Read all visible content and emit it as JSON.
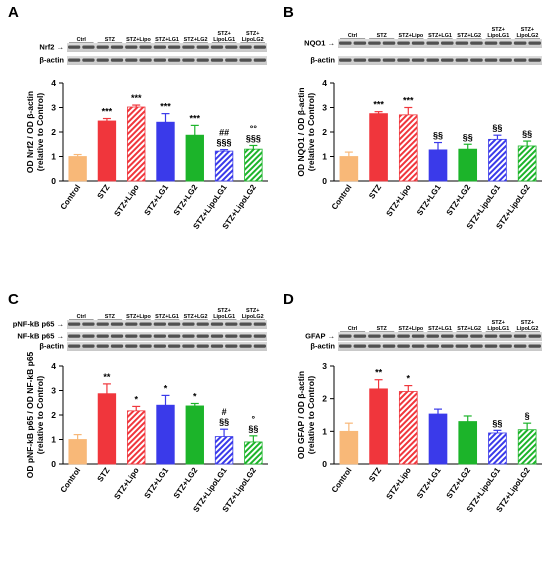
{
  "panels": [
    {
      "panel_letter": "A",
      "lane_labels": [
        [
          "Ctrl"
        ],
        [
          "STZ"
        ],
        [
          "STZ+Lipo"
        ],
        [
          "STZ+LG1"
        ],
        [
          "STZ+LG2"
        ],
        [
          "STZ+",
          "LipoLG1"
        ],
        [
          "STZ+",
          "LipoLG2"
        ]
      ],
      "blot_labels": [
        "Nrf2",
        "β-actin"
      ],
      "chart_data": {
        "type": "bar",
        "categories": [
          "Control",
          "STZ",
          "STZ+Lipo",
          "STZ+LG1",
          "STZ+LG2",
          "STZ+LipoLG1",
          "STZ+LipoLG2"
        ],
        "values": [
          1.0,
          2.45,
          3.02,
          2.4,
          1.87,
          1.22,
          1.3
        ],
        "errors": [
          0.08,
          0.1,
          0.08,
          0.35,
          0.4,
          0.06,
          0.15
        ],
        "significance": [
          [],
          [
            "***"
          ],
          [
            "***"
          ],
          [
            "***"
          ],
          [
            "***"
          ],
          [
            "##",
            "§§§"
          ],
          [
            "°°",
            "§§§"
          ]
        ],
        "ylabel_lines": [
          "OD Nrf2 / OD β-actin",
          "(relative to Control)"
        ],
        "ylim": [
          0,
          4
        ],
        "yticks": [
          0,
          1,
          2,
          3,
          4
        ]
      }
    },
    {
      "panel_letter": "B",
      "lane_labels": [
        [
          "Ctrl"
        ],
        [
          "STZ"
        ],
        [
          "STZ+Lipo"
        ],
        [
          "STZ+LG1"
        ],
        [
          "STZ+LG2"
        ],
        [
          "STZ+",
          "LipoLG1"
        ],
        [
          "STZ+",
          "LipoLG2"
        ]
      ],
      "blot_labels": [
        "NQO1",
        "β-actin"
      ],
      "chart_data": {
        "type": "bar",
        "categories": [
          "Control",
          "STZ",
          "STZ+Lipo",
          "STZ+LG1",
          "STZ+LG2",
          "STZ+LipoLG1",
          "STZ+LipoLG2"
        ],
        "values": [
          1.0,
          2.75,
          2.7,
          1.27,
          1.3,
          1.7,
          1.43
        ],
        "errors": [
          0.18,
          0.08,
          0.3,
          0.3,
          0.2,
          0.17,
          0.2
        ],
        "significance": [
          [],
          [
            "***"
          ],
          [
            "***"
          ],
          [
            "§§"
          ],
          [
            "§§"
          ],
          [
            "§§"
          ],
          [
            "§§"
          ]
        ],
        "ylabel_lines": [
          "OD NQO1 / OD β-actin",
          "(relative to Control)"
        ],
        "ylim": [
          0,
          4
        ],
        "yticks": [
          0,
          1,
          2,
          3,
          4
        ]
      }
    },
    {
      "panel_letter": "C",
      "lane_labels": [
        [
          "Ctrl"
        ],
        [
          "STZ"
        ],
        [
          "STZ+Lipo"
        ],
        [
          "STZ+LG1"
        ],
        [
          "STZ+LG2"
        ],
        [
          "STZ+",
          "LipoLG1"
        ],
        [
          "STZ+",
          "LipoLG2"
        ]
      ],
      "blot_labels": [
        "pNF-kB p65",
        "NF-kB p65",
        "β-actin"
      ],
      "chart_data": {
        "type": "bar",
        "categories": [
          "Control",
          "STZ",
          "STZ+Lipo",
          "STZ+LG1",
          "STZ+LG2",
          "STZ+LipoLG1",
          "STZ+LipoLG2"
        ],
        "values": [
          1.0,
          2.87,
          2.17,
          2.4,
          2.37,
          1.12,
          0.9
        ],
        "errors": [
          0.2,
          0.4,
          0.18,
          0.4,
          0.1,
          0.3,
          0.25
        ],
        "significance": [
          [],
          [
            "**"
          ],
          [
            "*"
          ],
          [
            "*"
          ],
          [
            "*"
          ],
          [
            "#",
            "§§"
          ],
          [
            "°",
            "§§"
          ]
        ],
        "ylabel_lines": [
          "OD pNF-kB p65 / OD NF-kB p65",
          "(relative to Control)"
        ],
        "ylim": [
          0,
          4
        ],
        "yticks": [
          0,
          1,
          2,
          3,
          4
        ]
      }
    },
    {
      "panel_letter": "D",
      "lane_labels": [
        [
          "Ctrl"
        ],
        [
          "STZ"
        ],
        [
          "STZ+Lipo"
        ],
        [
          "STZ+LG1"
        ],
        [
          "STZ+LG2"
        ],
        [
          "STZ+",
          "LipoLG1"
        ],
        [
          "STZ+",
          "LipoLG2"
        ]
      ],
      "blot_labels": [
        "GFAP",
        "β-actin"
      ],
      "chart_data": {
        "type": "bar",
        "categories": [
          "Control",
          "STZ",
          "STZ+Lipo",
          "STZ+LG1",
          "STZ+LG2",
          "STZ+LipoLG1",
          "STZ+LipoLG2"
        ],
        "values": [
          1.0,
          2.3,
          2.22,
          1.53,
          1.3,
          0.95,
          1.05
        ],
        "errors": [
          0.25,
          0.28,
          0.18,
          0.15,
          0.17,
          0.08,
          0.2
        ],
        "significance": [
          [],
          [
            "**"
          ],
          [
            "*"
          ],
          [],
          [],
          [
            "§§"
          ],
          [
            "§"
          ]
        ],
        "ylabel_lines": [
          "OD GFAP / OD β-actin",
          "(relative to Control)"
        ],
        "ylim": [
          0,
          3
        ],
        "yticks": [
          0,
          1,
          2,
          3
        ]
      }
    }
  ],
  "bar_colors": [
    "#f8b878",
    "#f0363c",
    "#f0363c",
    "#3a3aea",
    "#1cb42a",
    "#3a3aea",
    "#1cb42a"
  ],
  "hatched_bars": [
    false,
    false,
    true,
    false,
    false,
    true,
    true
  ]
}
